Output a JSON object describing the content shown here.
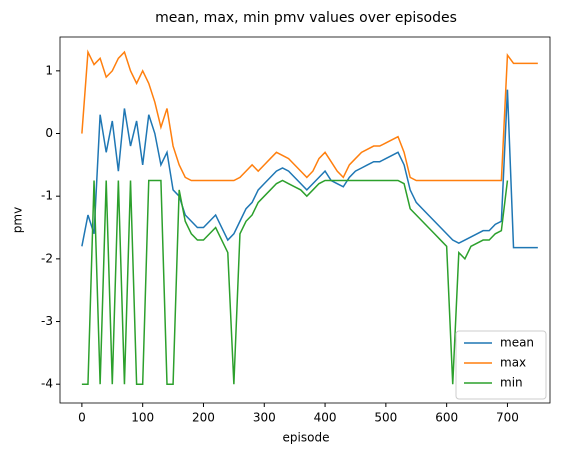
{
  "chart_data": {
    "type": "line",
    "title": "mean, max, min pmv values over episodes",
    "xlabel": "episode",
    "ylabel": "pmv",
    "x": [
      0,
      10,
      20,
      30,
      40,
      50,
      60,
      70,
      80,
      90,
      100,
      110,
      120,
      130,
      140,
      150,
      160,
      170,
      180,
      190,
      200,
      210,
      220,
      230,
      240,
      250,
      260,
      270,
      280,
      290,
      300,
      310,
      320,
      330,
      340,
      350,
      360,
      370,
      380,
      390,
      400,
      410,
      420,
      430,
      440,
      450,
      460,
      470,
      480,
      490,
      500,
      510,
      520,
      530,
      540,
      550,
      560,
      570,
      580,
      590,
      600,
      610,
      620,
      630,
      640,
      650,
      660,
      670,
      680,
      690,
      700,
      710,
      720,
      730,
      740,
      750
    ],
    "series": [
      {
        "name": "mean",
        "color": "#1f77b4",
        "values": [
          -1.8,
          -1.3,
          -1.6,
          0.3,
          -0.3,
          0.2,
          -0.6,
          0.4,
          -0.2,
          0.2,
          -0.5,
          0.3,
          0.0,
          -0.5,
          -0.3,
          -0.9,
          -1.0,
          -1.3,
          -1.4,
          -1.5,
          -1.5,
          -1.4,
          -1.3,
          -1.5,
          -1.7,
          -1.6,
          -1.4,
          -1.2,
          -1.1,
          -0.9,
          -0.8,
          -0.7,
          -0.6,
          -0.55,
          -0.6,
          -0.7,
          -0.8,
          -0.9,
          -0.8,
          -0.7,
          -0.6,
          -0.75,
          -0.8,
          -0.85,
          -0.7,
          -0.6,
          -0.55,
          -0.5,
          -0.45,
          -0.45,
          -0.4,
          -0.35,
          -0.3,
          -0.5,
          -0.9,
          -1.1,
          -1.2,
          -1.3,
          -1.4,
          -1.5,
          -1.6,
          -1.7,
          -1.75,
          -1.7,
          -1.65,
          -1.6,
          -1.55,
          -1.55,
          -1.45,
          -1.4,
          0.7,
          -1.82,
          -1.82,
          -1.82,
          -1.82,
          -1.82
        ]
      },
      {
        "name": "max",
        "color": "#ff7f0e",
        "values": [
          0.0,
          1.3,
          1.1,
          1.2,
          0.9,
          1.0,
          1.2,
          1.3,
          1.0,
          0.8,
          1.0,
          0.8,
          0.5,
          0.1,
          0.4,
          -0.2,
          -0.5,
          -0.7,
          -0.75,
          -0.75,
          -0.75,
          -0.75,
          -0.75,
          -0.75,
          -0.75,
          -0.75,
          -0.7,
          -0.6,
          -0.5,
          -0.6,
          -0.5,
          -0.4,
          -0.3,
          -0.35,
          -0.4,
          -0.5,
          -0.6,
          -0.7,
          -0.6,
          -0.4,
          -0.3,
          -0.45,
          -0.6,
          -0.7,
          -0.5,
          -0.4,
          -0.3,
          -0.25,
          -0.2,
          -0.2,
          -0.15,
          -0.1,
          -0.05,
          -0.3,
          -0.7,
          -0.75,
          -0.75,
          -0.75,
          -0.75,
          -0.75,
          -0.75,
          -0.75,
          -0.75,
          -0.75,
          -0.75,
          -0.75,
          -0.75,
          -0.75,
          -0.75,
          -0.75,
          1.25,
          1.12,
          1.12,
          1.12,
          1.12,
          1.12
        ]
      },
      {
        "name": "min",
        "color": "#2ca02c",
        "values": [
          -4,
          -4,
          -0.75,
          -4,
          -0.75,
          -4,
          -0.75,
          -4,
          -0.75,
          -4,
          -4,
          -0.75,
          -0.75,
          -0.75,
          -4,
          -4,
          -0.9,
          -1.4,
          -1.6,
          -1.7,
          -1.7,
          -1.6,
          -1.5,
          -1.7,
          -1.9,
          -4,
          -1.6,
          -1.4,
          -1.3,
          -1.1,
          -1.0,
          -0.9,
          -0.8,
          -0.75,
          -0.8,
          -0.85,
          -0.9,
          -1.0,
          -0.9,
          -0.8,
          -0.75,
          -0.75,
          -0.75,
          -0.75,
          -0.75,
          -0.75,
          -0.75,
          -0.75,
          -0.75,
          -0.75,
          -0.75,
          -0.75,
          -0.75,
          -0.8,
          -1.2,
          -1.3,
          -1.4,
          -1.5,
          -1.6,
          -1.7,
          -1.8,
          -4,
          -1.9,
          -2.0,
          -1.8,
          -1.75,
          -1.7,
          -1.7,
          -1.6,
          -1.55,
          -0.75,
          null,
          null,
          null,
          null,
          null
        ]
      }
    ],
    "xlim": [
      -36,
      770
    ],
    "ylim": [
      -4.3,
      1.54
    ],
    "xticks": [
      0,
      100,
      200,
      300,
      400,
      500,
      600,
      700
    ],
    "yticks": [
      -4,
      -3,
      -2,
      -1,
      0,
      1
    ],
    "legend": "lower right"
  }
}
